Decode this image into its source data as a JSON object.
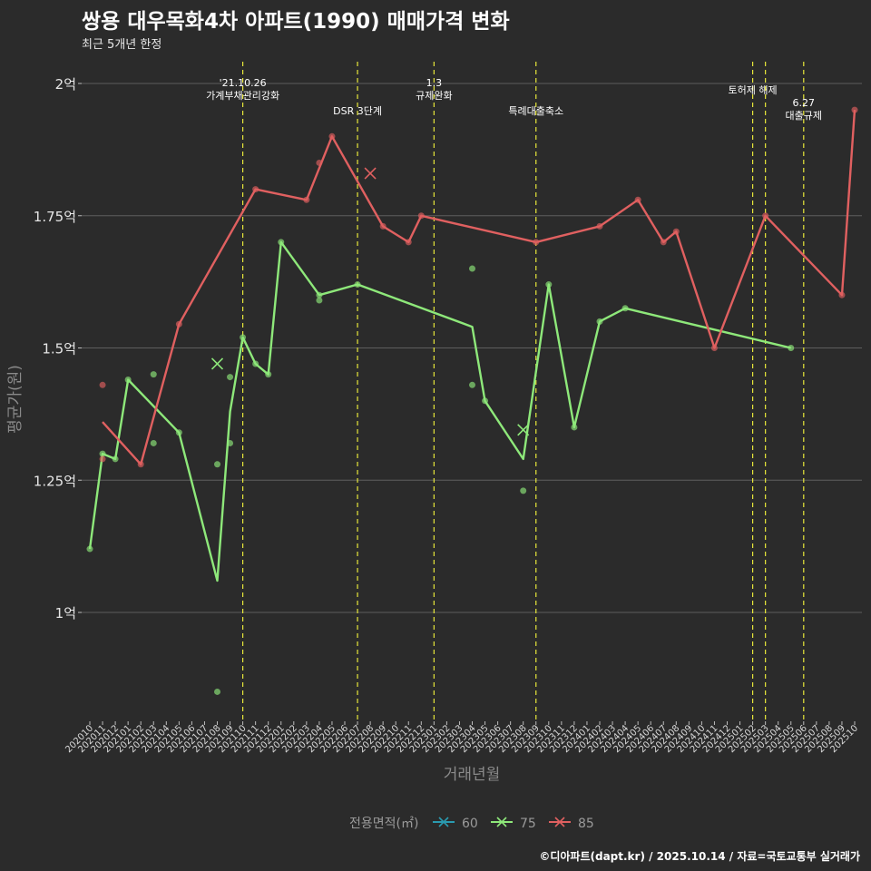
{
  "chart_data": {
    "type": "line",
    "title": "쌍용 대우목화4차 아파트(1990) 매매가격 변화",
    "subtitle": "최근 5개년 한정",
    "xlabel": "거래년월",
    "ylabel": "평균가(원)",
    "caption": "©디아파트(dapt.kr) / 2025.10.14 / 자료=국토교통부 실거래가",
    "legend": {
      "title": "전용면적(㎡)",
      "placement": "bottom"
    },
    "ylim": [
      0.8,
      2.05
    ],
    "y_ticks": [
      {
        "value": 1.0,
        "label": "1억"
      },
      {
        "value": 1.25,
        "label": "1.25억"
      },
      {
        "value": 1.5,
        "label": "1.5억"
      },
      {
        "value": 1.75,
        "label": "1.75억"
      },
      {
        "value": 2.0,
        "label": "2억"
      }
    ],
    "x_categories": [
      "202010",
      "202011",
      "202012",
      "202101",
      "202102",
      "202103",
      "202104",
      "202105",
      "202106",
      "202107",
      "202108",
      "202109",
      "202110",
      "202111",
      "202112",
      "202201",
      "202202",
      "202203",
      "202204",
      "202205",
      "202206",
      "202207",
      "202208",
      "202209",
      "202210",
      "202211",
      "202212",
      "202301",
      "202302",
      "202303",
      "202304",
      "202305",
      "202306",
      "202307",
      "202308",
      "202309",
      "202310",
      "202311",
      "202312",
      "202401",
      "202402",
      "202403",
      "202404",
      "202405",
      "202406",
      "202407",
      "202408",
      "202409",
      "202410",
      "202411",
      "202412",
      "202501",
      "202502",
      "202503",
      "202504",
      "202505",
      "202506",
      "202507",
      "202508",
      "202509",
      "202510"
    ],
    "events": [
      {
        "x": "202110",
        "lines": [
          "'21.10.26",
          "가계부채관리강화"
        ],
        "row": 1
      },
      {
        "x": "202207",
        "lines": [
          "DSR 3단계"
        ],
        "row": 2
      },
      {
        "x": "202301",
        "lines": [
          "1.3",
          "규제완화"
        ],
        "row": 1
      },
      {
        "x": "202309",
        "lines": [
          "특례대출축소"
        ],
        "row": 2
      },
      {
        "x": "202502",
        "lines": [
          "토허제 해제"
        ],
        "row": 3
      },
      {
        "x": "202503",
        "lines": [],
        "row": 3
      },
      {
        "x": "202506",
        "lines": [
          "6.27",
          "대출규제"
        ],
        "row": 4
      }
    ],
    "series": [
      {
        "name": "60",
        "color": "#2a9bb0",
        "line": [],
        "points": [],
        "cross": []
      },
      {
        "name": "75",
        "color": "#8ee87a",
        "line": [
          [
            "202010",
            1.12
          ],
          [
            "202011",
            1.3
          ],
          [
            "202012",
            1.29
          ],
          [
            "202101",
            1.44
          ],
          [
            "202105",
            1.34
          ],
          [
            "202108",
            1.06
          ],
          [
            "202109",
            1.38
          ],
          [
            "202110",
            1.52
          ],
          [
            "202111",
            1.47
          ],
          [
            "202112",
            1.45
          ],
          [
            "202201",
            1.7
          ],
          [
            "202204",
            1.6
          ],
          [
            "202207",
            1.62
          ],
          [
            "202304",
            1.54
          ],
          [
            "202305",
            1.4
          ],
          [
            "202308",
            1.29
          ],
          [
            "202310",
            1.62
          ],
          [
            "202312",
            1.35
          ],
          [
            "202402",
            1.55
          ],
          [
            "202404",
            1.575
          ],
          [
            "202505",
            1.5
          ]
        ],
        "points": [
          [
            "202010",
            1.12
          ],
          [
            "202011",
            1.3
          ],
          [
            "202012",
            1.29
          ],
          [
            "202101",
            1.44
          ],
          [
            "202103",
            1.45
          ],
          [
            "202103",
            1.32
          ],
          [
            "202105",
            1.34
          ],
          [
            "202108",
            1.28
          ],
          [
            "202108",
            0.85
          ],
          [
            "202109",
            1.445
          ],
          [
            "202109",
            1.32
          ],
          [
            "202110",
            1.52
          ],
          [
            "202111",
            1.47
          ],
          [
            "202112",
            1.45
          ],
          [
            "202201",
            1.7
          ],
          [
            "202204",
            1.6
          ],
          [
            "202204",
            1.59
          ],
          [
            "202207",
            1.62
          ],
          [
            "202304",
            1.65
          ],
          [
            "202304",
            1.43
          ],
          [
            "202305",
            1.4
          ],
          [
            "202308",
            1.23
          ],
          [
            "202310",
            1.62
          ],
          [
            "202312",
            1.35
          ],
          [
            "202402",
            1.55
          ],
          [
            "202404",
            1.575
          ],
          [
            "202505",
            1.5
          ]
        ],
        "cross": [
          [
            "202108",
            1.47
          ],
          [
            "202308",
            1.345
          ]
        ]
      },
      {
        "name": "85",
        "color": "#e06060",
        "line": [
          [
            "202011",
            1.36
          ],
          [
            "202102",
            1.28
          ],
          [
            "202105",
            1.545
          ],
          [
            "202111",
            1.8
          ],
          [
            "202203",
            1.78
          ],
          [
            "202205",
            1.9
          ],
          [
            "202209",
            1.73
          ],
          [
            "202211",
            1.7
          ],
          [
            "202212",
            1.75
          ],
          [
            "202309",
            1.7
          ],
          [
            "202402",
            1.73
          ],
          [
            "202405",
            1.78
          ],
          [
            "202407",
            1.7
          ],
          [
            "202408",
            1.72
          ],
          [
            "202411",
            1.5
          ],
          [
            "202503",
            1.75
          ],
          [
            "202509",
            1.6
          ],
          [
            "202510",
            1.95
          ]
        ],
        "points": [
          [
            "202011",
            1.43
          ],
          [
            "202011",
            1.29
          ],
          [
            "202102",
            1.28
          ],
          [
            "202105",
            1.545
          ],
          [
            "202111",
            1.8
          ],
          [
            "202203",
            1.78
          ],
          [
            "202204",
            1.85
          ],
          [
            "202205",
            1.9
          ],
          [
            "202209",
            1.73
          ],
          [
            "202211",
            1.7
          ],
          [
            "202212",
            1.75
          ],
          [
            "202309",
            1.7
          ],
          [
            "202402",
            1.73
          ],
          [
            "202405",
            1.78
          ],
          [
            "202407",
            1.7
          ],
          [
            "202408",
            1.72
          ],
          [
            "202411",
            1.5
          ],
          [
            "202503",
            1.75
          ],
          [
            "202509",
            1.6
          ],
          [
            "202510",
            1.95
          ]
        ],
        "cross": [
          [
            "202208",
            1.83
          ]
        ]
      }
    ]
  }
}
